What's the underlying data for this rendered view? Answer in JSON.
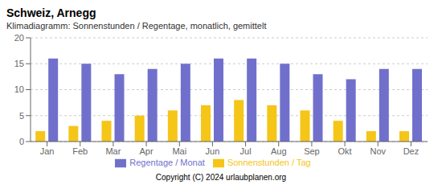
{
  "chart_data": {
    "type": "bar",
    "title": "Schweiz, Arnegg",
    "subtitle": "Klimadiagramm: Sonnenstunden / Regentage, monatlich, gemittelt",
    "categories": [
      "Jan",
      "Feb",
      "Mar",
      "Apr",
      "Mai",
      "Jun",
      "Jul",
      "Aug",
      "Sep",
      "Okt",
      "Nov",
      "Dez"
    ],
    "series": [
      {
        "name": "Sonnenstunden / Tag",
        "color": "#f5c518",
        "values": [
          2,
          3,
          4,
          5,
          6,
          7,
          8,
          7,
          6,
          4,
          2,
          2
        ]
      },
      {
        "name": "Regentage / Monat",
        "color": "#7070cc",
        "values": [
          16,
          15,
          13,
          14,
          15,
          16,
          16,
          15,
          13,
          12,
          14,
          14
        ]
      }
    ],
    "ylim": [
      0,
      20
    ],
    "yticks": [
      0,
      5,
      10,
      15,
      20
    ],
    "grid": true,
    "legend": "bottom",
    "annotations": [
      "Copyright (C) 2024 urlaubplanen.org"
    ]
  }
}
